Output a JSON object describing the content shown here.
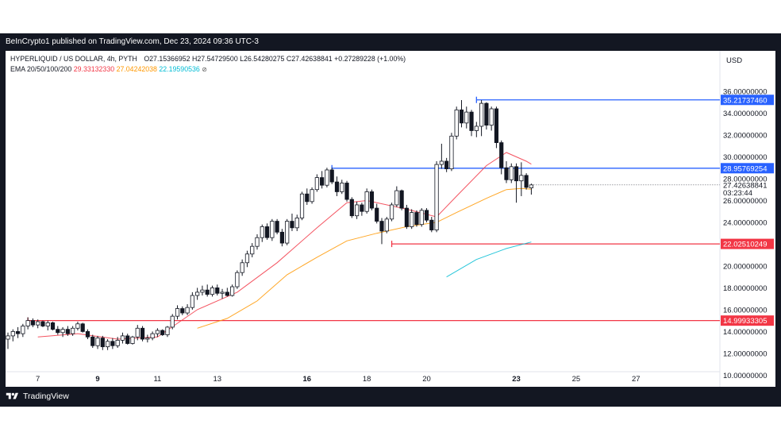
{
  "header": {
    "publisher_text": "BeInCrypto1 published on TradingView.com, Dec 23, 2024 09:36 UTC-3"
  },
  "legend": {
    "symbol": "HYPERLIQUID / US DOLLAR, 4h, PYTH",
    "o_label": "O",
    "o_value": "27.15366952",
    "h_label": "H",
    "h_value": "27.54729500",
    "l_label": "L",
    "l_value": "26.54280275",
    "c_label": "C",
    "c_value": "27.42638841",
    "change": "+0.27289228 (+1.00%)",
    "ema_label": "EMA 20/50/100/200",
    "ema20": "29.33132330",
    "ema50": "27.04242038",
    "ema100": "22.19590536",
    "eye_icon": "eye-slash-icon"
  },
  "footer": {
    "brand": "TradingView",
    "logo_icon": "tradingview-logo-icon"
  },
  "colors": {
    "background": "#131722",
    "panel": "#ffffff",
    "up": "#ffffff",
    "down": "#131722",
    "candle_border": "#131722",
    "ema20": "#f23645",
    "ema50": "#ff9800",
    "ema100": "#00bcd4",
    "blue_line": "#2962ff",
    "red_line": "#f23645"
  },
  "chart_data": {
    "type": "candlestick",
    "title": "HYPERLIQUID / US DOLLAR, 4h, PYTH",
    "currency_label": "USD",
    "ylim": [
      9.3,
      36.8
    ],
    "y_ticks": [
      {
        "value": 36,
        "label": "36.00000000"
      },
      {
        "value": 34,
        "label": "34.00000000"
      },
      {
        "value": 32,
        "label": "32.00000000"
      },
      {
        "value": 30,
        "label": "30.00000000"
      },
      {
        "value": 28,
        "label": "28.00000000"
      },
      {
        "value": 26,
        "label": "26.00000000"
      },
      {
        "value": 24,
        "label": "24.00000000"
      },
      {
        "value": 22,
        "label": "22.00000000"
      },
      {
        "value": 20,
        "label": "20.00000000"
      },
      {
        "value": 18,
        "label": "18.00000000"
      },
      {
        "value": 16,
        "label": "16.00000000"
      },
      {
        "value": 14,
        "label": "14.00000000"
      },
      {
        "value": 12,
        "label": "12.00000000"
      },
      {
        "value": 10,
        "label": "10.00000000"
      }
    ],
    "x_ticks": [
      {
        "bar": 6,
        "label": "7",
        "bold": false
      },
      {
        "bar": 18,
        "label": "9",
        "bold": true
      },
      {
        "bar": 30,
        "label": "11",
        "bold": false
      },
      {
        "bar": 42,
        "label": "13",
        "bold": false
      },
      {
        "bar": 60,
        "label": "16",
        "bold": true
      },
      {
        "bar": 72,
        "label": "18",
        "bold": false
      },
      {
        "bar": 84,
        "label": "20",
        "bold": false
      },
      {
        "bar": 102,
        "label": "23",
        "bold": true
      },
      {
        "bar": 114,
        "label": "25",
        "bold": false
      },
      {
        "bar": 126,
        "label": "27",
        "bold": false
      }
    ],
    "candles": [
      {
        "o": 13.3,
        "h": 13.9,
        "l": 12.4,
        "c": 13.6
      },
      {
        "o": 13.6,
        "h": 14.2,
        "l": 13.1,
        "c": 14.0
      },
      {
        "o": 14.0,
        "h": 14.4,
        "l": 13.4,
        "c": 13.8
      },
      {
        "o": 13.8,
        "h": 14.7,
        "l": 13.5,
        "c": 14.5
      },
      {
        "o": 14.5,
        "h": 15.3,
        "l": 14.2,
        "c": 15.0
      },
      {
        "o": 15.0,
        "h": 15.2,
        "l": 14.4,
        "c": 14.6
      },
      {
        "o": 14.6,
        "h": 15.1,
        "l": 14.3,
        "c": 14.9
      },
      {
        "o": 14.9,
        "h": 15.0,
        "l": 14.4,
        "c": 14.5
      },
      {
        "o": 14.5,
        "h": 15.0,
        "l": 14.1,
        "c": 14.8
      },
      {
        "o": 14.8,
        "h": 14.9,
        "l": 14.1,
        "c": 14.2
      },
      {
        "o": 14.2,
        "h": 14.5,
        "l": 13.7,
        "c": 13.9
      },
      {
        "o": 13.9,
        "h": 14.4,
        "l": 13.5,
        "c": 14.2
      },
      {
        "o": 14.2,
        "h": 14.5,
        "l": 13.6,
        "c": 13.8
      },
      {
        "o": 13.8,
        "h": 14.5,
        "l": 13.6,
        "c": 14.3
      },
      {
        "o": 14.3,
        "h": 14.9,
        "l": 14.1,
        "c": 14.7
      },
      {
        "o": 14.7,
        "h": 14.8,
        "l": 13.9,
        "c": 14.0
      },
      {
        "o": 14.0,
        "h": 14.2,
        "l": 13.3,
        "c": 13.5
      },
      {
        "o": 13.5,
        "h": 13.7,
        "l": 12.5,
        "c": 12.7
      },
      {
        "o": 12.7,
        "h": 13.6,
        "l": 12.4,
        "c": 13.4
      },
      {
        "o": 13.4,
        "h": 13.6,
        "l": 12.3,
        "c": 12.6
      },
      {
        "o": 12.6,
        "h": 13.3,
        "l": 12.3,
        "c": 13.1
      },
      {
        "o": 13.1,
        "h": 13.4,
        "l": 12.4,
        "c": 12.7
      },
      {
        "o": 12.7,
        "h": 13.5,
        "l": 12.5,
        "c": 13.2
      },
      {
        "o": 13.2,
        "h": 13.9,
        "l": 12.9,
        "c": 13.6
      },
      {
        "o": 13.6,
        "h": 13.8,
        "l": 12.8,
        "c": 12.9
      },
      {
        "o": 12.9,
        "h": 13.6,
        "l": 12.8,
        "c": 13.5
      },
      {
        "o": 13.5,
        "h": 14.6,
        "l": 13.2,
        "c": 14.3
      },
      {
        "o": 14.3,
        "h": 14.5,
        "l": 13.1,
        "c": 13.3
      },
      {
        "o": 13.3,
        "h": 13.7,
        "l": 13.0,
        "c": 13.4
      },
      {
        "o": 13.4,
        "h": 14.0,
        "l": 13.2,
        "c": 13.8
      },
      {
        "o": 13.8,
        "h": 14.3,
        "l": 13.5,
        "c": 14.1
      },
      {
        "o": 14.1,
        "h": 14.2,
        "l": 13.6,
        "c": 13.7
      },
      {
        "o": 13.7,
        "h": 14.5,
        "l": 13.5,
        "c": 14.4
      },
      {
        "o": 14.4,
        "h": 15.6,
        "l": 14.2,
        "c": 15.4
      },
      {
        "o": 15.4,
        "h": 16.4,
        "l": 15.1,
        "c": 16.1
      },
      {
        "o": 16.1,
        "h": 16.3,
        "l": 15.5,
        "c": 15.7
      },
      {
        "o": 15.7,
        "h": 16.5,
        "l": 15.5,
        "c": 16.2
      },
      {
        "o": 16.2,
        "h": 17.6,
        "l": 16.0,
        "c": 17.3
      },
      {
        "o": 17.3,
        "h": 18.0,
        "l": 16.9,
        "c": 17.6
      },
      {
        "o": 17.6,
        "h": 18.2,
        "l": 17.3,
        "c": 17.8
      },
      {
        "o": 17.8,
        "h": 18.3,
        "l": 17.2,
        "c": 17.4
      },
      {
        "o": 17.4,
        "h": 18.2,
        "l": 17.2,
        "c": 18.0
      },
      {
        "o": 18.0,
        "h": 18.3,
        "l": 17.3,
        "c": 17.5
      },
      {
        "o": 17.5,
        "h": 17.9,
        "l": 17.0,
        "c": 17.6
      },
      {
        "o": 17.6,
        "h": 18.0,
        "l": 17.2,
        "c": 17.3
      },
      {
        "o": 17.3,
        "h": 18.3,
        "l": 17.2,
        "c": 18.1
      },
      {
        "o": 18.1,
        "h": 19.6,
        "l": 17.9,
        "c": 19.4
      },
      {
        "o": 19.4,
        "h": 20.6,
        "l": 19.1,
        "c": 20.3
      },
      {
        "o": 20.3,
        "h": 21.4,
        "l": 19.9,
        "c": 21.1
      },
      {
        "o": 21.1,
        "h": 22.1,
        "l": 20.8,
        "c": 21.8
      },
      {
        "o": 21.8,
        "h": 22.9,
        "l": 21.5,
        "c": 22.6
      },
      {
        "o": 22.6,
        "h": 23.8,
        "l": 22.2,
        "c": 23.6
      },
      {
        "o": 23.6,
        "h": 23.9,
        "l": 22.4,
        "c": 22.6
      },
      {
        "o": 22.6,
        "h": 24.3,
        "l": 22.3,
        "c": 24.1
      },
      {
        "o": 24.1,
        "h": 24.3,
        "l": 22.9,
        "c": 23.1
      },
      {
        "o": 23.1,
        "h": 23.4,
        "l": 21.8,
        "c": 22.1
      },
      {
        "o": 22.1,
        "h": 24.3,
        "l": 21.9,
        "c": 24.1
      },
      {
        "o": 24.1,
        "h": 24.8,
        "l": 23.2,
        "c": 23.5
      },
      {
        "o": 23.5,
        "h": 24.7,
        "l": 23.2,
        "c": 24.4
      },
      {
        "o": 24.4,
        "h": 26.8,
        "l": 24.2,
        "c": 26.6
      },
      {
        "o": 26.6,
        "h": 27.1,
        "l": 25.6,
        "c": 25.9
      },
      {
        "o": 25.9,
        "h": 27.2,
        "l": 25.7,
        "c": 27.0
      },
      {
        "o": 27.0,
        "h": 28.4,
        "l": 26.8,
        "c": 28.1
      },
      {
        "o": 28.1,
        "h": 28.7,
        "l": 27.1,
        "c": 27.4
      },
      {
        "o": 27.4,
        "h": 29.0,
        "l": 27.2,
        "c": 28.8
      },
      {
        "o": 28.8,
        "h": 29.0,
        "l": 27.5,
        "c": 27.7
      },
      {
        "o": 27.7,
        "h": 28.2,
        "l": 26.4,
        "c": 26.8
      },
      {
        "o": 26.8,
        "h": 27.9,
        "l": 26.6,
        "c": 27.6
      },
      {
        "o": 27.6,
        "h": 27.8,
        "l": 25.9,
        "c": 26.1
      },
      {
        "o": 26.1,
        "h": 26.3,
        "l": 24.4,
        "c": 24.6
      },
      {
        "o": 24.6,
        "h": 25.9,
        "l": 24.3,
        "c": 25.6
      },
      {
        "o": 25.6,
        "h": 25.8,
        "l": 24.6,
        "c": 25.0
      },
      {
        "o": 25.0,
        "h": 27.1,
        "l": 24.8,
        "c": 26.8
      },
      {
        "o": 26.8,
        "h": 27.0,
        "l": 25.1,
        "c": 25.3
      },
      {
        "o": 25.3,
        "h": 25.7,
        "l": 23.9,
        "c": 24.1
      },
      {
        "o": 24.1,
        "h": 24.4,
        "l": 22.0,
        "c": 23.2
      },
      {
        "o": 23.2,
        "h": 24.5,
        "l": 23.0,
        "c": 24.3
      },
      {
        "o": 24.3,
        "h": 25.8,
        "l": 24.1,
        "c": 25.6
      },
      {
        "o": 25.6,
        "h": 27.3,
        "l": 25.4,
        "c": 26.9
      },
      {
        "o": 26.9,
        "h": 27.0,
        "l": 25.1,
        "c": 25.3
      },
      {
        "o": 25.3,
        "h": 25.6,
        "l": 23.4,
        "c": 23.6
      },
      {
        "o": 23.6,
        "h": 25.2,
        "l": 23.4,
        "c": 24.9
      },
      {
        "o": 24.9,
        "h": 25.1,
        "l": 23.6,
        "c": 23.8
      },
      {
        "o": 23.8,
        "h": 25.3,
        "l": 23.6,
        "c": 25.1
      },
      {
        "o": 25.1,
        "h": 25.3,
        "l": 24.0,
        "c": 24.2
      },
      {
        "o": 24.2,
        "h": 24.5,
        "l": 23.1,
        "c": 23.3
      },
      {
        "o": 23.3,
        "h": 29.6,
        "l": 23.1,
        "c": 29.3
      },
      {
        "o": 29.3,
        "h": 31.2,
        "l": 28.9,
        "c": 29.6
      },
      {
        "o": 29.6,
        "h": 29.9,
        "l": 28.6,
        "c": 28.9
      },
      {
        "o": 28.9,
        "h": 32.2,
        "l": 28.7,
        "c": 31.9
      },
      {
        "o": 31.9,
        "h": 34.6,
        "l": 31.6,
        "c": 34.3
      },
      {
        "o": 34.3,
        "h": 35.2,
        "l": 32.7,
        "c": 33.1
      },
      {
        "o": 33.1,
        "h": 34.6,
        "l": 32.6,
        "c": 34.1
      },
      {
        "o": 34.1,
        "h": 34.3,
        "l": 31.9,
        "c": 32.4
      },
      {
        "o": 32.4,
        "h": 33.2,
        "l": 31.8,
        "c": 32.8
      },
      {
        "o": 32.8,
        "h": 35.2,
        "l": 31.9,
        "c": 34.9
      },
      {
        "o": 34.9,
        "h": 35.0,
        "l": 32.5,
        "c": 32.9
      },
      {
        "o": 32.9,
        "h": 34.6,
        "l": 32.4,
        "c": 34.4
      },
      {
        "o": 34.4,
        "h": 34.6,
        "l": 30.8,
        "c": 31.3
      },
      {
        "o": 31.3,
        "h": 31.5,
        "l": 28.4,
        "c": 29.0
      },
      {
        "o": 29.0,
        "h": 29.6,
        "l": 27.6,
        "c": 27.9
      },
      {
        "o": 27.9,
        "h": 29.4,
        "l": 27.6,
        "c": 29.1
      },
      {
        "o": 29.1,
        "h": 29.4,
        "l": 25.8,
        "c": 27.8
      },
      {
        "o": 27.8,
        "h": 29.5,
        "l": 26.4,
        "c": 28.3
      },
      {
        "o": 28.3,
        "h": 28.5,
        "l": 27.0,
        "c": 27.2
      },
      {
        "o": 27.15366952,
        "h": 27.547295,
        "l": 26.54280275,
        "c": 27.42638841
      }
    ],
    "ema20": [
      [
        6,
        13.5
      ],
      [
        14,
        13.8
      ],
      [
        22,
        13.3
      ],
      [
        30,
        13.5
      ],
      [
        38,
        16.0
      ],
      [
        46,
        17.6
      ],
      [
        54,
        20.3
      ],
      [
        62,
        23.5
      ],
      [
        68,
        25.8
      ],
      [
        72,
        26.0
      ],
      [
        80,
        25.2
      ],
      [
        86,
        24.5
      ],
      [
        90,
        26.4
      ],
      [
        96,
        29.2
      ],
      [
        100,
        30.4
      ],
      [
        104,
        29.6
      ],
      [
        105,
        29.33
      ]
    ],
    "ema50": [
      [
        38,
        14.3
      ],
      [
        44,
        15.2
      ],
      [
        50,
        16.8
      ],
      [
        56,
        19.2
      ],
      [
        62,
        20.8
      ],
      [
        68,
        22.3
      ],
      [
        74,
        23.0
      ],
      [
        80,
        23.6
      ],
      [
        86,
        24.0
      ],
      [
        90,
        24.9
      ],
      [
        96,
        26.2
      ],
      [
        100,
        27.0
      ],
      [
        103,
        27.1
      ],
      [
        105,
        27.04
      ]
    ],
    "ema100": [
      [
        88,
        19.0
      ],
      [
        94,
        20.6
      ],
      [
        100,
        21.6
      ],
      [
        105,
        22.2
      ]
    ],
    "levels": [
      {
        "value": 35.2173746,
        "label": "35.21737460",
        "color": "#2962ff",
        "from_bar": 94
      },
      {
        "value": 28.95769254,
        "label": "28.95769254",
        "color": "#2962ff",
        "from_bar": 65
      },
      {
        "value": 22.02510249,
        "label": "22.02510249",
        "color": "#f23645",
        "from_bar": 77
      },
      {
        "value": 14.99933305,
        "label": "14.99933305",
        "color": "#f23645",
        "from_bar": 4
      }
    ],
    "last_price": {
      "value": 27.42638841,
      "label": "27.42638841",
      "countdown": "03:23:44"
    }
  }
}
